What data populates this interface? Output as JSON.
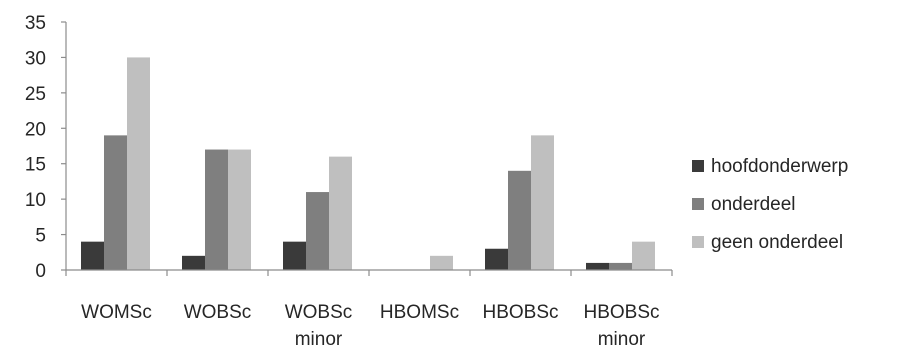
{
  "chart_data": {
    "type": "bar",
    "categories": [
      [
        "WOMSc"
      ],
      [
        "WOBSc"
      ],
      [
        "WOBSc",
        "minor"
      ],
      [
        "HBOMSc"
      ],
      [
        "HBOBSc"
      ],
      [
        "HBOBSc",
        "minor"
      ]
    ],
    "series": [
      {
        "name": "hoofdonderwerp",
        "color": "#3a3a3a",
        "values": [
          4,
          2,
          4,
          0,
          3,
          1
        ]
      },
      {
        "name": "onderdeel",
        "color": "#7f7f7f",
        "values": [
          19,
          17,
          11,
          0,
          14,
          1
        ]
      },
      {
        "name": "geen onderdeel",
        "color": "#bfbfbf",
        "values": [
          30,
          17,
          16,
          2,
          19,
          4
        ]
      }
    ],
    "ylim": [
      0,
      35
    ],
    "yticks": [
      0,
      5,
      10,
      15,
      20,
      25,
      30,
      35
    ],
    "grid": false,
    "legend_position": "right"
  }
}
